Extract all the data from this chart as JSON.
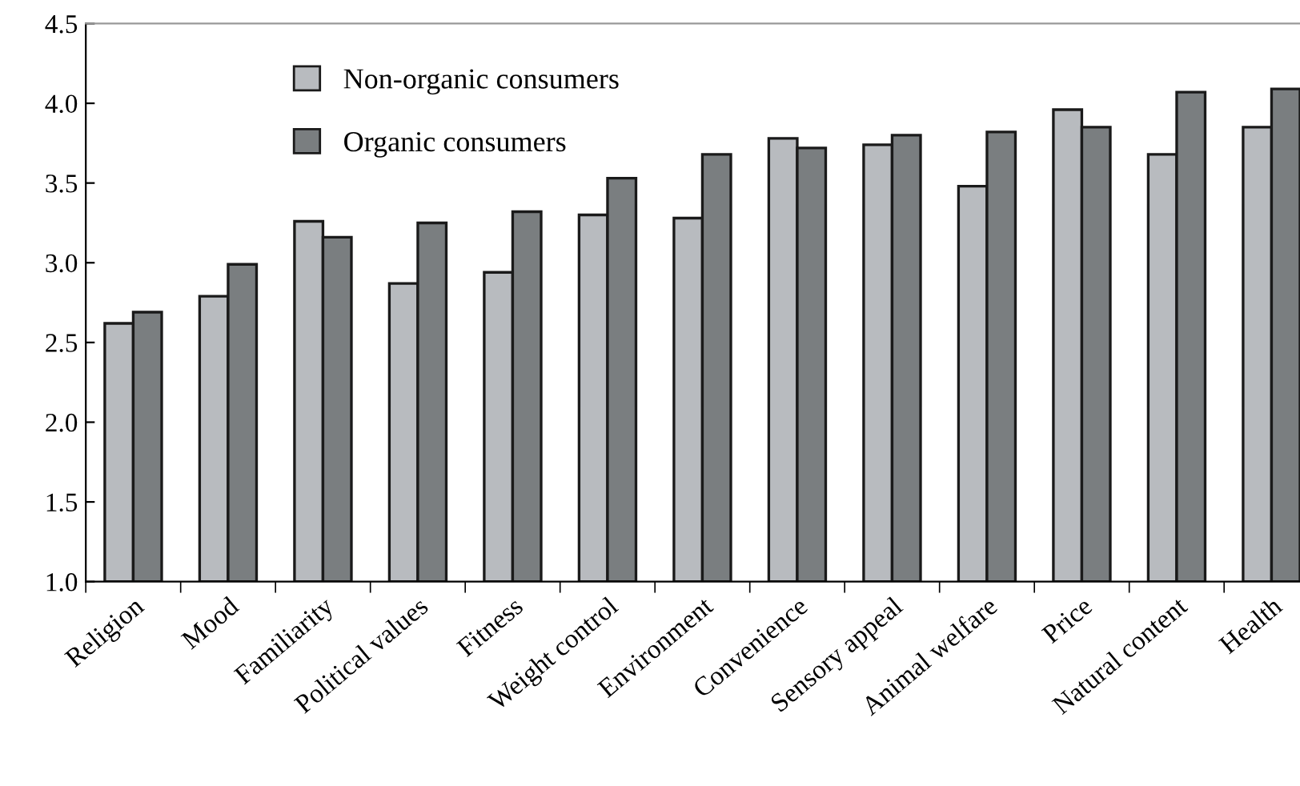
{
  "chart_data": {
    "type": "bar",
    "categories": [
      "Religion",
      "Mood",
      "Familiarity",
      "Political values",
      "Fitness",
      "Weight control",
      "Environment",
      "Convenience",
      "Sensory appeal",
      "Animal welfare",
      "Price",
      "Natural content",
      "Health"
    ],
    "series": [
      {
        "name": "Non-organic consumers",
        "color": "#b8bbbf",
        "values": [
          2.62,
          2.79,
          3.26,
          2.87,
          2.94,
          3.3,
          3.28,
          3.78,
          3.74,
          3.48,
          3.96,
          3.68,
          3.85
        ]
      },
      {
        "name": "Organic consumers",
        "color": "#7a7e80",
        "values": [
          2.69,
          2.99,
          3.16,
          3.25,
          3.32,
          3.53,
          3.68,
          3.72,
          3.8,
          3.82,
          3.85,
          4.07,
          4.09
        ]
      }
    ],
    "ylim": [
      1.0,
      4.5
    ],
    "yticks": [
      {
        "value": 1.0,
        "label": "1.0"
      },
      {
        "value": 1.5,
        "label": "1.5"
      },
      {
        "value": 2.0,
        "label": "2.0"
      },
      {
        "value": 2.5,
        "label": "2.5"
      },
      {
        "value": 3.0,
        "label": "3.0"
      },
      {
        "value": 3.5,
        "label": "3.5"
      },
      {
        "value": 4.0,
        "label": "4.0"
      },
      {
        "value": 4.5,
        "label": "4.5"
      }
    ],
    "legend": "top left",
    "grid": false
  }
}
